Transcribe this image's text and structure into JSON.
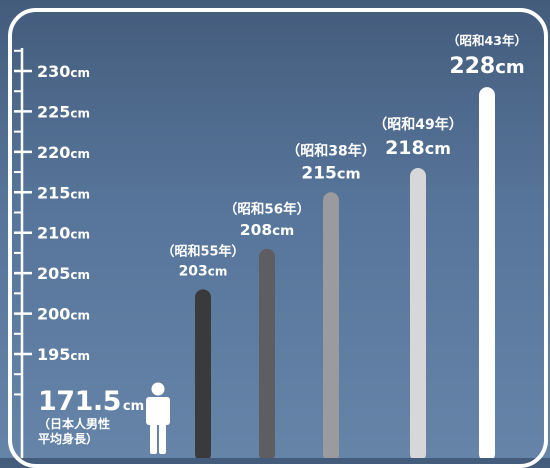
{
  "colors": {
    "background_top": "#445c7c",
    "background_bottom": "#6684a8",
    "frame": "#ffffff",
    "text": "#ffffff",
    "bar_colors": [
      "#3a3a3c",
      "#5e5e62",
      "#9b9b9f",
      "#d7d7d9",
      "#ffffff"
    ]
  },
  "icons": {
    "person": "person-icon"
  },
  "average": {
    "value": "171.5",
    "unit": "cm",
    "caption_line1": "（日本人男性",
    "caption_line2": "平均身長）"
  },
  "chart_data": {
    "type": "bar",
    "title": "",
    "xlabel": "",
    "ylabel": "",
    "unit": "cm",
    "ylim": [
      190,
      232
    ],
    "y_ticks": [
      "195",
      "200",
      "205",
      "210",
      "215",
      "220",
      "225",
      "230"
    ],
    "categories": [
      "（昭和55年）",
      "（昭和56年）",
      "（昭和38年）",
      "（昭和49年）",
      "（昭和43年）"
    ],
    "values": [
      203,
      208,
      215,
      218,
      228
    ],
    "value_labels": [
      "203",
      "208",
      "215",
      "218",
      "228"
    ]
  }
}
